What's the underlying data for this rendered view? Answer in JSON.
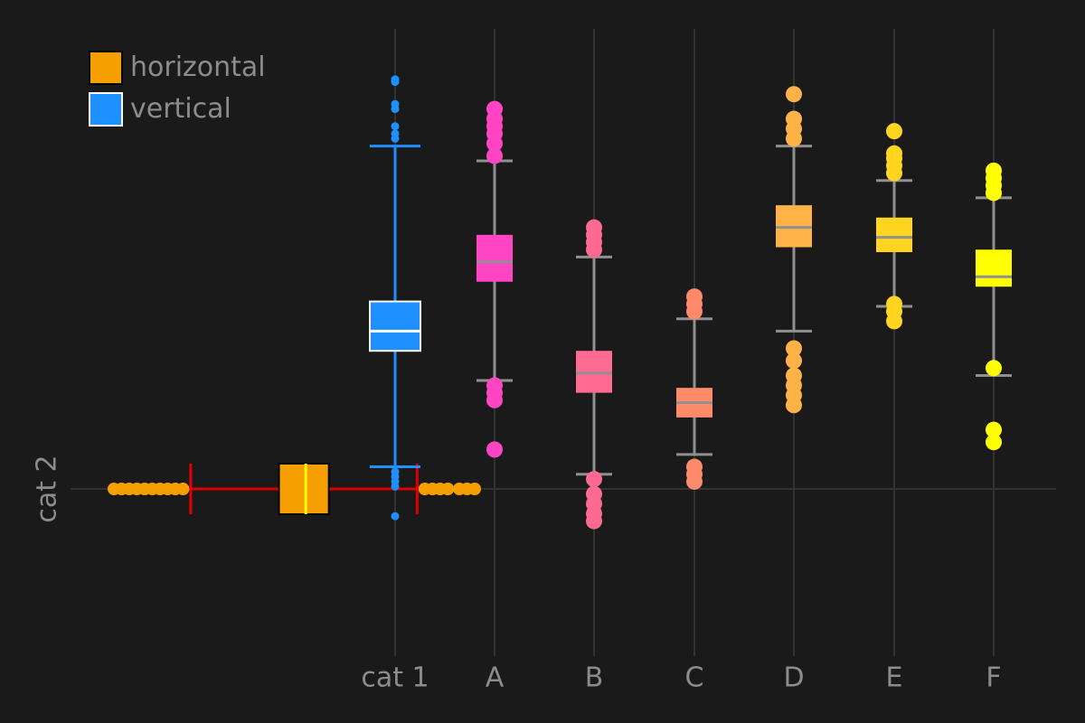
{
  "legend": {
    "items": [
      {
        "label": "horizontal",
        "color": "#f5a000"
      },
      {
        "label": "vertical",
        "color": "#1e90ff"
      }
    ]
  },
  "axes": {
    "y_category_label": "cat 2",
    "x_categories": [
      "cat 1",
      "A",
      "B",
      "C",
      "D",
      "E",
      "F"
    ]
  },
  "colors": {
    "background": "#1a1a1a",
    "grid": "#3a3a3a",
    "text": "#8c8c8c",
    "whisker_gray": "#909090",
    "whisker_red": "#e00000",
    "median_yellow": "#ffff00"
  },
  "chart_data": {
    "type": "boxplot",
    "value_range": [
      0,
      23
    ],
    "grid": true,
    "legend_position": "top-left",
    "horizontal_box": {
      "category": "cat 2",
      "legend_series": "horizontal",
      "color": "#f5a000",
      "whisker_color": "#e00000",
      "median_color": "#ffff00",
      "q1": 4.3,
      "median": 5.0,
      "q3": 5.6,
      "whisker_low": 2.0,
      "whisker_high": 7.9,
      "outliers": [
        0.0,
        0.2,
        0.4,
        0.6,
        0.8,
        1.0,
        1.2,
        1.4,
        1.6,
        1.8,
        8.1,
        8.3,
        8.5,
        8.7,
        9.0,
        9.2,
        9.4
      ]
    },
    "vertical_boxes": [
      {
        "category": "cat 1",
        "legend_series": "vertical",
        "color": "#1e90ff",
        "outline": "#ffffff",
        "median_color": "#ffffff",
        "point_size": "small",
        "q1": 11.2,
        "median": 12.0,
        "q3": 13.2,
        "whisker_low": 6.5,
        "whisker_high": 19.5,
        "outliers": [
          4.5,
          5.7,
          5.9,
          6.1,
          6.3,
          19.8,
          20.0,
          20.3,
          21.0,
          21.2,
          22.1,
          22.2
        ]
      },
      {
        "category": "A",
        "color": "#ff44c4",
        "point_size": "large",
        "q1": 14.0,
        "median": 14.8,
        "q3": 15.9,
        "whisker_low": 10.0,
        "whisker_high": 18.9,
        "outliers": [
          7.2,
          9.2,
          9.5,
          9.8,
          19.1,
          19.6,
          20.0,
          20.3,
          20.6,
          21.0
        ]
      },
      {
        "category": "B",
        "color": "#ff6a93",
        "point_size": "large",
        "q1": 9.5,
        "median": 10.3,
        "q3": 11.2,
        "whisker_low": 6.2,
        "whisker_high": 15.0,
        "outliers": [
          4.3,
          4.6,
          5.0,
          5.4,
          6.0,
          15.3,
          15.6,
          15.9,
          16.2
        ]
      },
      {
        "category": "C",
        "color": "#ff8a6a",
        "point_size": "large",
        "q1": 8.5,
        "median": 9.1,
        "q3": 9.7,
        "whisker_low": 7.0,
        "whisker_high": 12.5,
        "outliers": [
          5.9,
          6.2,
          6.5,
          12.8,
          13.1,
          13.4
        ]
      },
      {
        "category": "D",
        "color": "#ffb347",
        "point_size": "large",
        "q1": 15.4,
        "median": 16.2,
        "q3": 17.1,
        "whisker_low": 12.0,
        "whisker_high": 19.5,
        "outliers": [
          9.0,
          9.4,
          9.8,
          10.2,
          10.8,
          11.3,
          19.8,
          20.2,
          20.6,
          21.6
        ]
      },
      {
        "category": "E",
        "color": "#ffd520",
        "point_size": "large",
        "q1": 15.2,
        "median": 15.8,
        "q3": 16.6,
        "whisker_low": 13.0,
        "whisker_high": 18.1,
        "outliers": [
          12.4,
          12.8,
          13.1,
          18.4,
          18.7,
          19.0,
          19.2,
          20.1
        ]
      },
      {
        "category": "F",
        "color": "#ffff00",
        "point_size": "large",
        "q1": 13.8,
        "median": 14.2,
        "q3": 15.3,
        "whisker_low": 10.2,
        "whisker_high": 17.4,
        "outliers": [
          7.5,
          8.0,
          10.5,
          17.6,
          17.9,
          18.2,
          18.5
        ]
      }
    ]
  }
}
